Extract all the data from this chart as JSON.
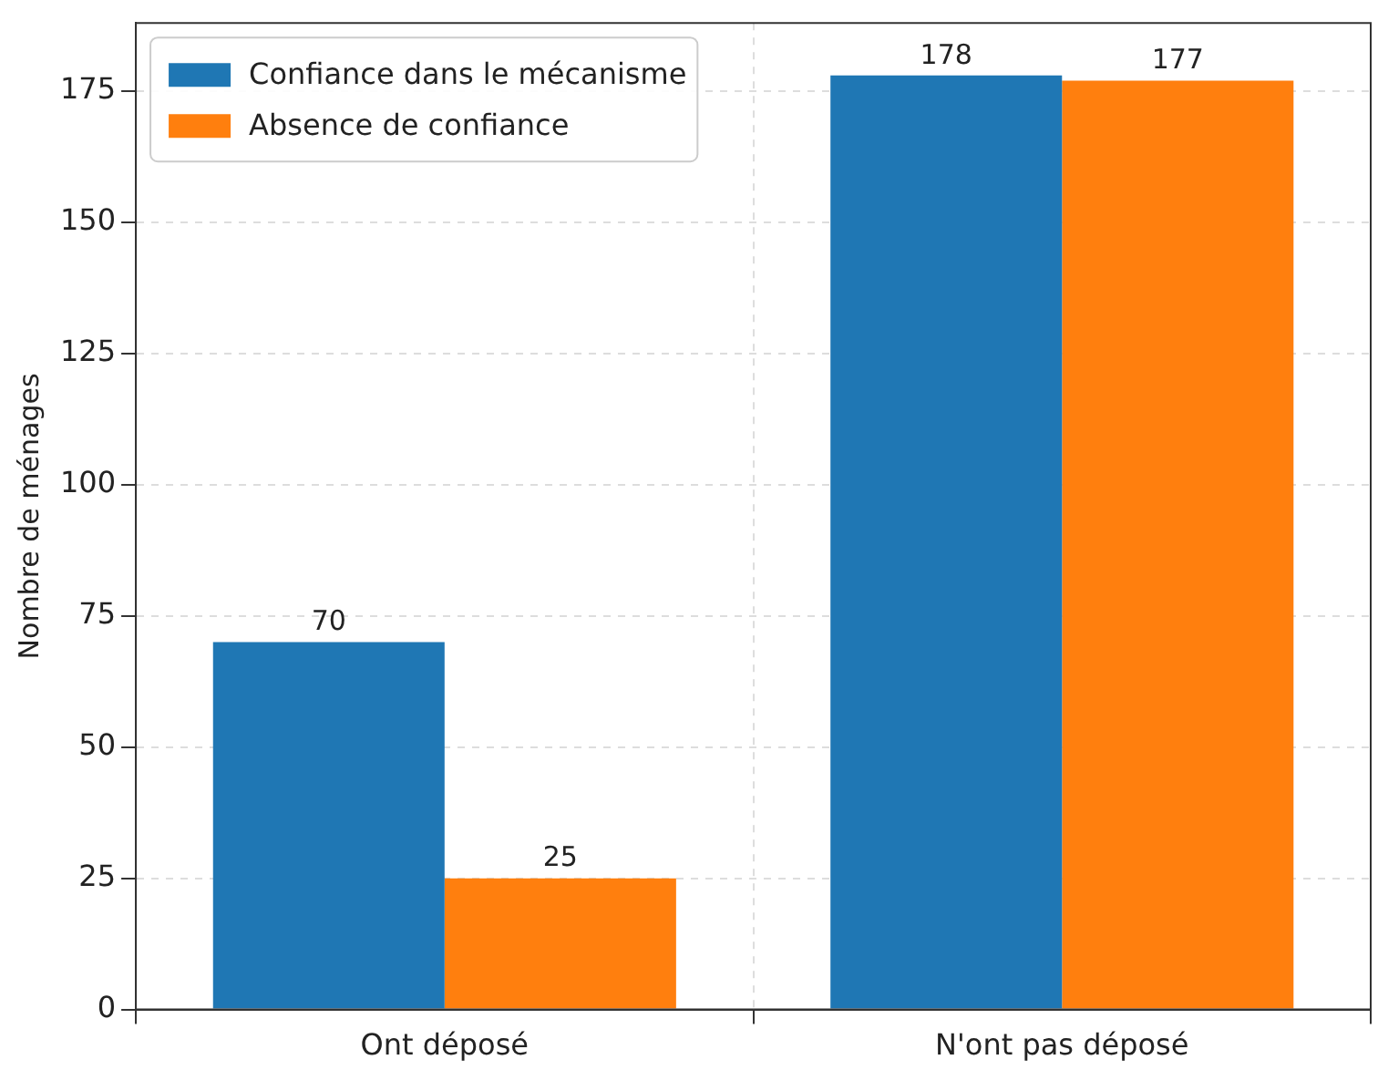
{
  "chart_data": {
    "type": "bar",
    "ylabel": "Nombre de ménages",
    "categories": [
      "Ont déposé",
      "N'ont pas déposé"
    ],
    "series": [
      {
        "name": "Confiance dans le mécanisme",
        "color": "#1f77b4",
        "values": [
          70,
          178
        ]
      },
      {
        "name": "Absence de confiance",
        "color": "#ff7f0e",
        "values": [
          25,
          177
        ]
      }
    ],
    "ylim": [
      0,
      188
    ],
    "yticks": [
      0,
      25,
      50,
      75,
      100,
      125,
      150,
      175
    ],
    "grid": true,
    "legend": "top left",
    "data_labels": true
  }
}
